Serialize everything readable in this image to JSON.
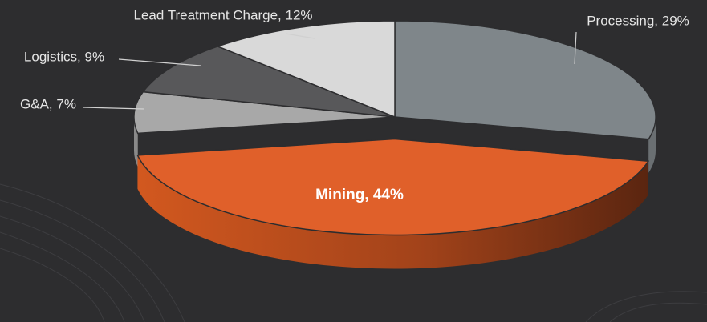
{
  "chart_data": {
    "type": "pie3d",
    "values": [
      29,
      44,
      7,
      9,
      12
    ],
    "value_labels": [
      "Processing, 29%",
      "Mining, 44%",
      "G&A, 7%",
      "Logistics, 9%",
      "Lead Treatment Charge, 12%"
    ],
    "colors": [
      "#7f868a",
      "#e0602a",
      "#a8a8a8",
      "#58585a",
      "#d9d9d9"
    ],
    "explode": [
      0,
      0.25,
      0,
      0,
      0
    ]
  }
}
